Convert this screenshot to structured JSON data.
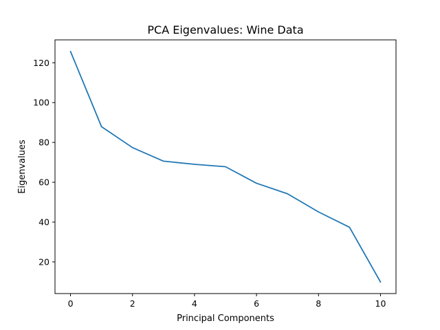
{
  "chart_data": {
    "type": "line",
    "title": "PCA Eigenvalues: Wine Data",
    "xlabel": "Principal Components",
    "ylabel": "Eigenvalues",
    "x": [
      0,
      1,
      2,
      3,
      4,
      5,
      6,
      7,
      8,
      9,
      10
    ],
    "series": [
      {
        "values": [
          125.7,
          87.9,
          77.4,
          70.6,
          69.0,
          67.8,
          59.5,
          54.2,
          45.1,
          37.4,
          9.9
        ],
        "color": "#1f77b4"
      }
    ],
    "xlim": [
      -0.5,
      10.5
    ],
    "ylim": [
      4.1,
      131.5
    ],
    "xticks": [
      0,
      2,
      4,
      6,
      8,
      10
    ],
    "xtick_labels": [
      "0",
      "2",
      "4",
      "6",
      "8",
      "10"
    ],
    "yticks": [
      20,
      40,
      60,
      80,
      100,
      120
    ],
    "ytick_labels": [
      "20",
      "40",
      "60",
      "80",
      "100",
      "120"
    ],
    "grid": false
  }
}
